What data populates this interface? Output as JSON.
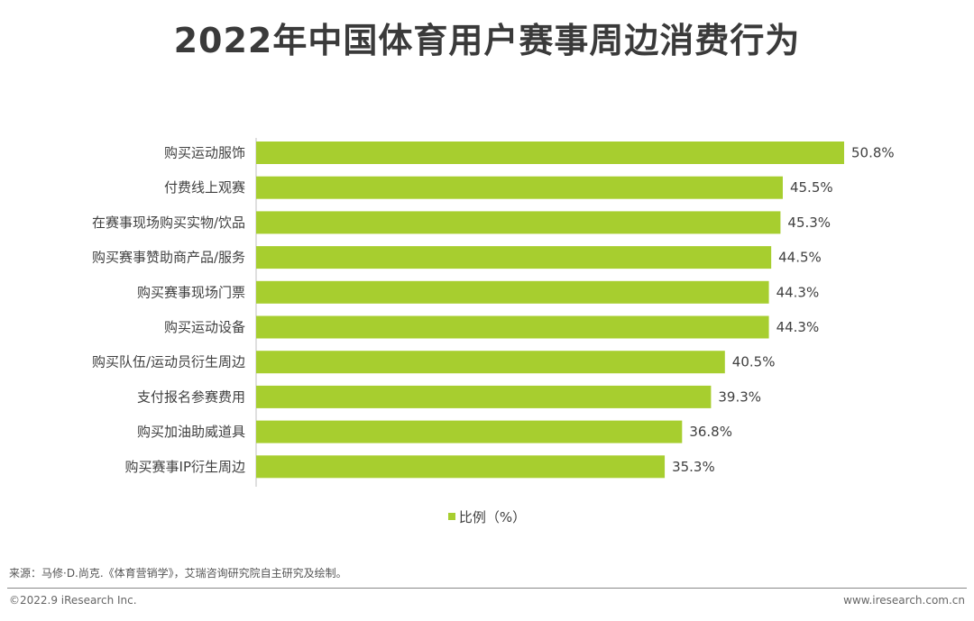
{
  "title": "2022年中国体育用户赛事周边消费行为",
  "legend": {
    "label": "比例（%）"
  },
  "source": "来源：马修·D.尚克.《体育营销学》，艾瑞咨询研究院自主研究及绘制。",
  "footer": {
    "copyright": "©2022.9 iResearch Inc.",
    "website": "www.iresearch.com.cn"
  },
  "colors": {
    "bar": "#a7ce2f",
    "axis": "#bfbfbf"
  },
  "chart_data": {
    "type": "bar",
    "orientation": "horizontal",
    "categories": [
      "购买运动服饰",
      "付费线上观赛",
      "在赛事现场购买实物/饮品",
      "购买赛事赞助商产品/服务",
      "购买赛事现场门票",
      "购买运动设备",
      "购买队伍/运动员衍生周边",
      "支付报名参赛费用",
      "购买加油助威道具",
      "购买赛事IP衍生周边"
    ],
    "values": [
      50.8,
      45.5,
      45.3,
      44.5,
      44.3,
      44.3,
      40.5,
      39.3,
      36.8,
      35.3
    ],
    "value_labels": [
      "50.8%",
      "45.5%",
      "45.3%",
      "44.5%",
      "44.3%",
      "44.3%",
      "40.5%",
      "39.3%",
      "36.8%",
      "35.3%"
    ],
    "series": [
      {
        "name": "比例（%）"
      }
    ],
    "xlim": [
      0,
      50.8
    ],
    "grid": false,
    "legend_position": "bottom-center"
  }
}
